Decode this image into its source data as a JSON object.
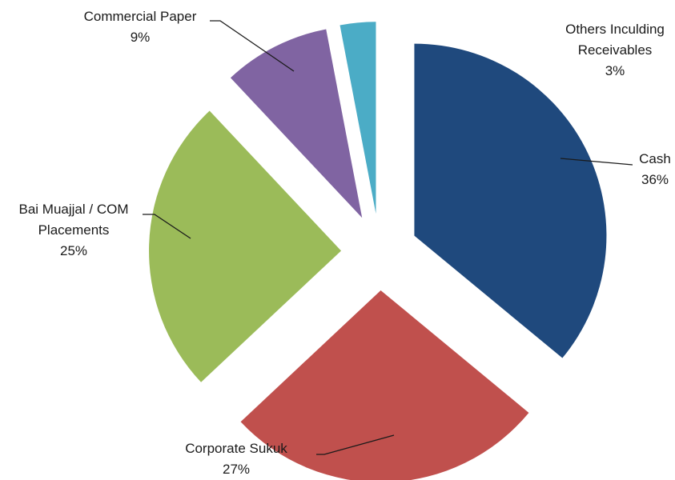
{
  "chart_data": {
    "type": "pie",
    "title": "",
    "legend": "none",
    "slices": [
      {
        "name": "Cash",
        "value": 36,
        "label": "36%",
        "color": "#1F497D"
      },
      {
        "name": "Corporate Sukuk",
        "value": 27,
        "label": "27%",
        "color": "#C0504D"
      },
      {
        "name": "Bai Muajjal / COM Placements",
        "value": 25,
        "label": "25%",
        "color": "#9BBB59"
      },
      {
        "name": "Commercial Paper",
        "value": 9,
        "label": "9%",
        "color": "#8064A2"
      },
      {
        "name": "Others Inculding Receivables",
        "value": 3,
        "label": "3%",
        "color": "#4BACC6"
      }
    ]
  }
}
